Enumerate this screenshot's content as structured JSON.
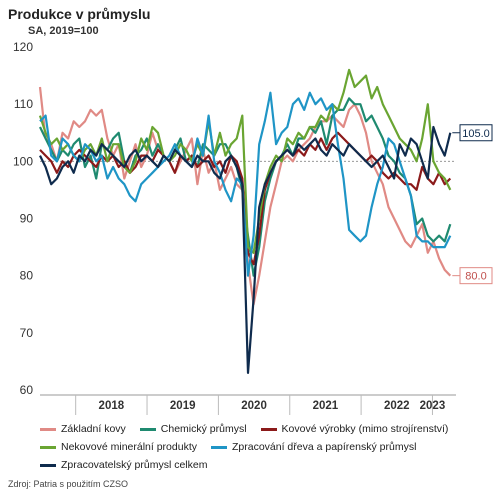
{
  "chart_data": {
    "type": "line",
    "title": "Produkce v průmyslu",
    "subtitle": "SA, 2019=100",
    "ylim": [
      60,
      120
    ],
    "yticks": [
      60,
      70,
      80,
      90,
      100,
      110,
      120
    ],
    "xlim": [
      2017.5,
      2023.33
    ],
    "year_labels": [
      {
        "label": "2018",
        "x": 2018.5
      },
      {
        "label": "2019",
        "x": 2019.5
      },
      {
        "label": "2020",
        "x": 2020.5
      },
      {
        "label": "2021",
        "x": 2021.5
      },
      {
        "label": "2022",
        "x": 2022.5
      },
      {
        "label": "2023",
        "x": 2023.0
      }
    ],
    "year_separators": [
      2018,
      2019,
      2020,
      2021,
      2022,
      2023
    ],
    "reference_line": 100,
    "grid": false,
    "legend_position": "bottom",
    "source": "Zdroj: Patria s použitím CZSO",
    "series": [
      {
        "name": "Základní kovy",
        "color": "#e08a85",
        "end_label": "80.0",
        "values": [
          113,
          104,
          103,
          100,
          105,
          104,
          107,
          106,
          107,
          109,
          108,
          109,
          104,
          101,
          103,
          97,
          100,
          103,
          99,
          101,
          105,
          102,
          101,
          100,
          98,
          100,
          102,
          104,
          96,
          102,
          98,
          100,
          95,
          97,
          99,
          96,
          95,
          82,
          75,
          80,
          86,
          92,
          96,
          100,
          101,
          100,
          102,
          103,
          104,
          106,
          107,
          107,
          108,
          107,
          106,
          109,
          110,
          108,
          105,
          100,
          98,
          96,
          92,
          90,
          88,
          86,
          85,
          87,
          89,
          84,
          86,
          83,
          81,
          80
        ]
      },
      {
        "name": "Chemický průmysl",
        "color": "#1f8a70",
        "end_label": "",
        "values": [
          106,
          104,
          102,
          100,
          102,
          101,
          103,
          104,
          99,
          101,
          97,
          103,
          102,
          104,
          105,
          100,
          98,
          101,
          102,
          104,
          101,
          103,
          101,
          100,
          102,
          104,
          100,
          101,
          99,
          103,
          102,
          101,
          103,
          103,
          101,
          99,
          95,
          87,
          80,
          85,
          93,
          97,
          100,
          101,
          103,
          101,
          104,
          104,
          106,
          105,
          107,
          103,
          108,
          109,
          109,
          111,
          110,
          110,
          107,
          108,
          106,
          104,
          101,
          100,
          98,
          97,
          94,
          89,
          90,
          87,
          86,
          87,
          86,
          89
        ]
      },
      {
        "name": "Kovové výrobky (mimo strojírenství)",
        "color": "#8b1a1a",
        "end_label": "",
        "values": [
          102,
          101,
          100,
          98,
          100,
          99,
          101,
          102,
          101,
          100,
          99,
          101,
          100,
          101,
          99,
          100,
          98,
          99,
          101,
          101,
          100,
          102,
          101,
          100,
          98,
          101,
          100,
          101,
          99,
          100,
          101,
          99,
          100,
          98,
          101,
          100,
          97,
          84,
          82,
          87,
          95,
          98,
          100,
          101,
          102,
          101,
          102,
          101,
          103,
          102,
          104,
          102,
          104,
          105,
          104,
          103,
          102,
          101,
          100,
          101,
          100,
          98,
          97,
          98,
          97,
          96,
          96,
          95,
          99,
          97,
          96,
          98,
          96,
          97
        ]
      },
      {
        "name": "Nekovové minerální produkty",
        "color": "#6aa532",
        "end_label": "",
        "values": [
          108,
          105,
          103,
          104,
          102,
          103,
          101,
          100,
          102,
          103,
          101,
          104,
          100,
          103,
          103,
          99,
          98,
          100,
          104,
          102,
          106,
          105,
          101,
          100,
          101,
          103,
          102,
          100,
          103,
          101,
          107,
          101,
          105,
          101,
          103,
          104,
          108,
          85,
          84,
          90,
          96,
          99,
          101,
          100,
          104,
          103,
          105,
          104,
          106,
          106,
          108,
          107,
          110,
          109,
          112,
          116,
          113,
          114,
          115,
          111,
          113,
          110,
          108,
          106,
          104,
          103,
          102,
          100,
          104,
          110,
          100,
          98,
          97,
          95
        ]
      },
      {
        "name": "Zpracování dřeva a papírenský průmysl",
        "color": "#1f95c6",
        "end_label": "",
        "values": [
          107,
          108,
          101,
          100,
          104,
          103,
          101,
          100,
          103,
          102,
          100,
          101,
          97,
          99,
          97,
          96,
          94,
          93,
          96,
          97,
          98,
          99,
          100,
          101,
          103,
          101,
          100,
          99,
          104,
          101,
          108,
          100,
          98,
          95,
          93,
          97,
          96,
          80,
          87,
          103,
          107,
          112,
          103,
          105,
          106,
          110,
          111,
          109,
          112,
          110,
          111,
          109,
          110,
          103,
          97,
          88,
          87,
          86,
          87,
          92,
          96,
          99,
          104,
          103,
          100,
          97,
          94,
          87,
          86,
          86,
          85,
          85,
          85,
          87
        ]
      },
      {
        "name": "Zpracovatelský průmysl celkem",
        "color": "#0f2b4d",
        "end_label": "105.0",
        "values": [
          101,
          99,
          96,
          97,
          99,
          100,
          98,
          101,
          100,
          102,
          101,
          103,
          102,
          101,
          100,
          99,
          101,
          102,
          100,
          101,
          100,
          99,
          101,
          100,
          102,
          101,
          100,
          99,
          101,
          100,
          100,
          98,
          97,
          100,
          101,
          99,
          96,
          63,
          76,
          92,
          96,
          98,
          100,
          101,
          102,
          101,
          103,
          102,
          103,
          104,
          102,
          101,
          103,
          102,
          101,
          103,
          102,
          101,
          100,
          99,
          100,
          101,
          99,
          97,
          103,
          101,
          104,
          103,
          100,
          97,
          106,
          103,
          101,
          105
        ]
      }
    ]
  }
}
